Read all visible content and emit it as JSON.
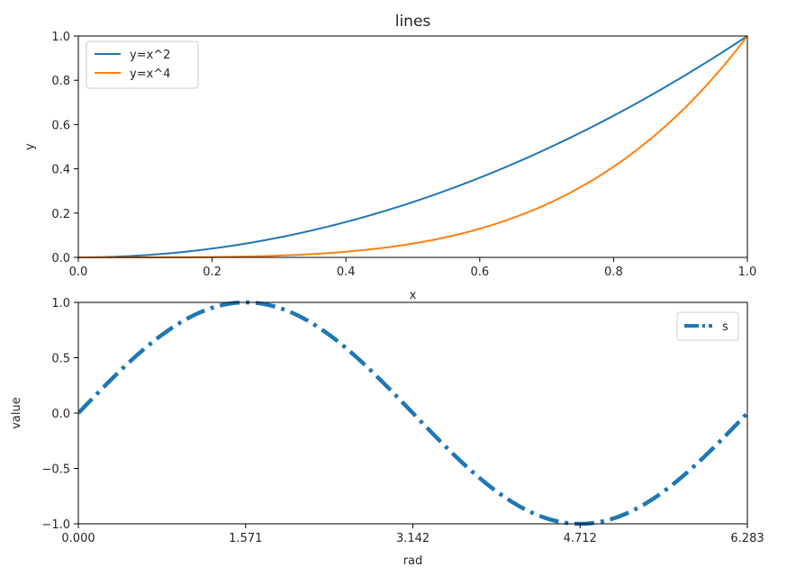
{
  "chart_data": [
    {
      "type": "line",
      "title": "lines",
      "xlabel": "x",
      "ylabel": "y",
      "xlim": [
        0,
        1
      ],
      "ylim": [
        0,
        1
      ],
      "xticks": [
        0.0,
        0.2,
        0.4,
        0.6,
        0.8,
        1.0
      ],
      "xtick_labels": [
        "0.0",
        "0.2",
        "0.4",
        "0.6",
        "0.8",
        "1.0"
      ],
      "yticks": [
        0.0,
        0.2,
        0.4,
        0.6,
        0.8,
        1.0
      ],
      "ytick_labels": [
        "0.0",
        "0.2",
        "0.4",
        "0.6",
        "0.8",
        "1.0"
      ],
      "grid": false,
      "legend_position": "top-left",
      "series": [
        {
          "name": "y=x^2",
          "color": "#1f77b4",
          "line_style": "solid",
          "x": [
            0.0,
            0.1,
            0.2,
            0.3,
            0.4,
            0.5,
            0.6,
            0.7,
            0.8,
            0.9,
            1.0
          ],
          "y": [
            0.0,
            0.01,
            0.04,
            0.09,
            0.16,
            0.25,
            0.36,
            0.49,
            0.64,
            0.81,
            1.0
          ]
        },
        {
          "name": "y=x^4",
          "color": "#ff7f0e",
          "line_style": "solid",
          "x": [
            0.0,
            0.1,
            0.2,
            0.3,
            0.4,
            0.5,
            0.6,
            0.7,
            0.8,
            0.9,
            1.0
          ],
          "y": [
            0.0,
            0.0001,
            0.0016,
            0.0081,
            0.0256,
            0.0625,
            0.1296,
            0.2401,
            0.4096,
            0.6561,
            1.0
          ]
        }
      ]
    },
    {
      "type": "line",
      "xlabel": "rad",
      "ylabel": "value",
      "xlim": [
        0,
        6.283
      ],
      "ylim": [
        -1,
        1
      ],
      "xticks": [
        0.0,
        1.571,
        3.142,
        4.712,
        6.283
      ],
      "xtick_labels": [
        "0.000",
        "1.571",
        "3.142",
        "4.712",
        "6.283"
      ],
      "yticks": [
        -1.0,
        -0.5,
        0.0,
        0.5,
        1.0
      ],
      "ytick_labels": [
        "−1.0",
        "−0.5",
        "0.0",
        "0.5",
        "1.0"
      ],
      "grid": false,
      "legend_position": "top-right",
      "series": [
        {
          "name": "s",
          "color": "#1f77b4",
          "line_style": "dashdot",
          "x": [
            0.0,
            0.524,
            1.047,
            1.571,
            2.094,
            2.618,
            3.142,
            3.665,
            4.189,
            4.712,
            5.236,
            5.76,
            6.283
          ],
          "y": [
            0.0,
            0.5,
            0.866,
            1.0,
            0.866,
            0.5,
            0.0,
            -0.5,
            -0.866,
            -1.0,
            -0.866,
            -0.5,
            0.0
          ]
        }
      ]
    }
  ]
}
